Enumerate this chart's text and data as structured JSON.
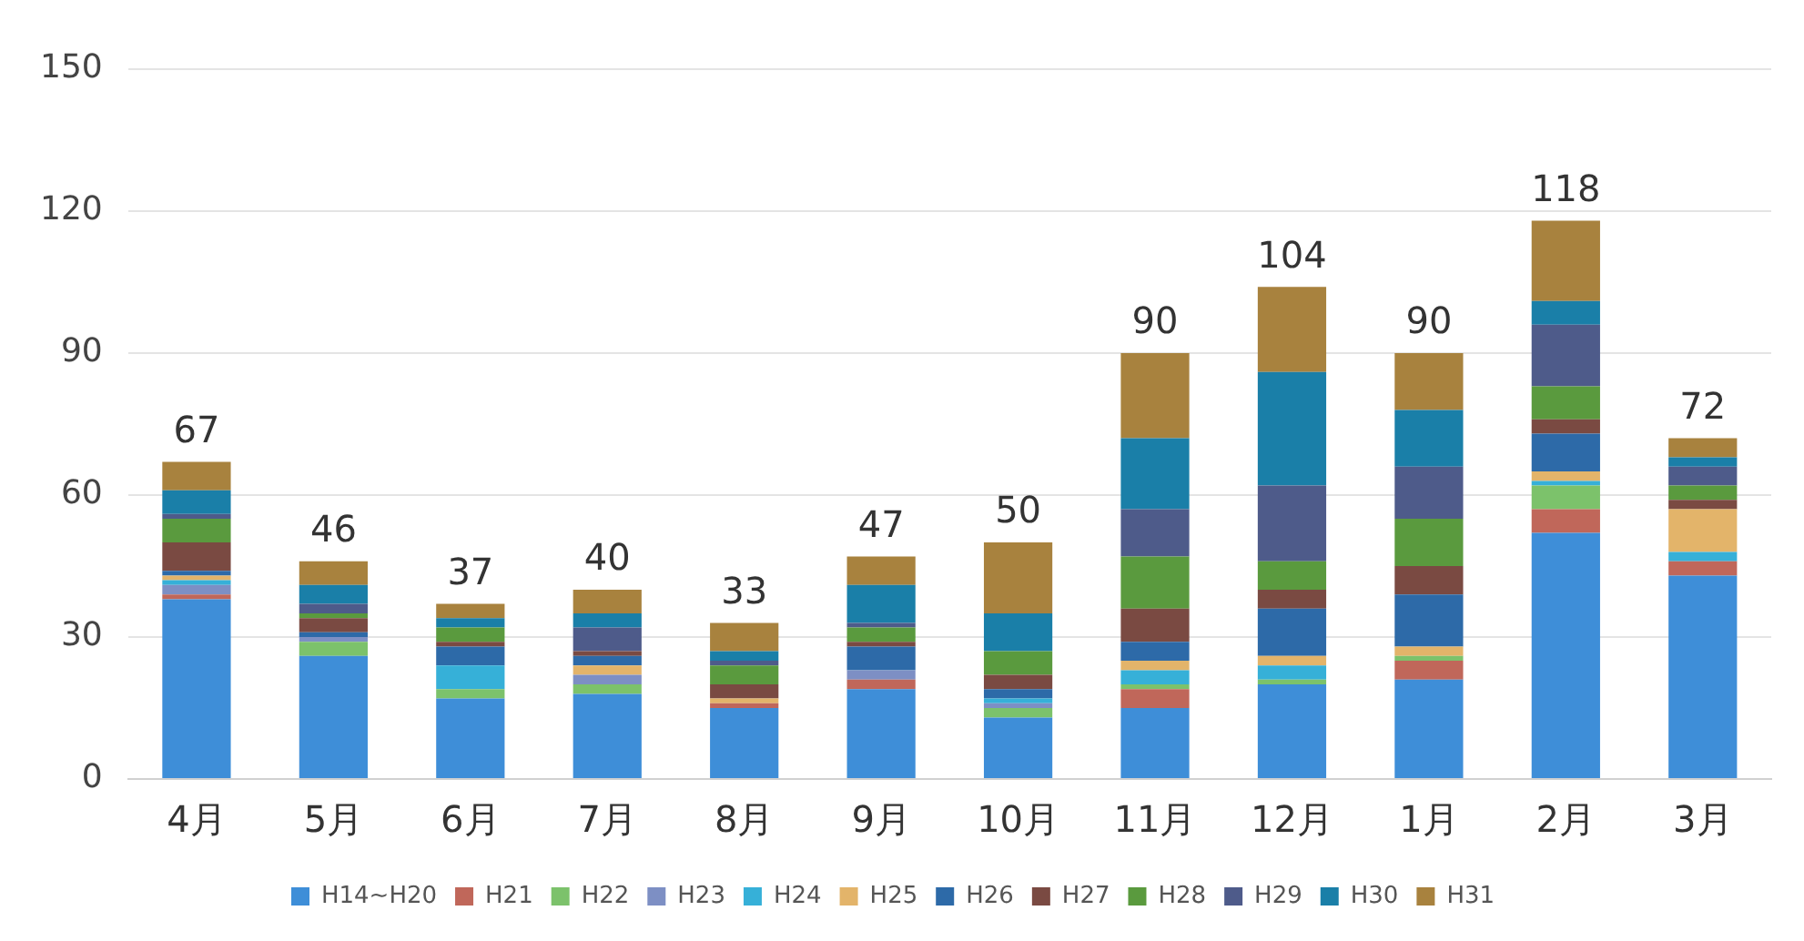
{
  "chart_data": {
    "type": "bar",
    "stacked": true,
    "categories": [
      "4月",
      "5月",
      "6月",
      "7月",
      "8月",
      "9月",
      "10月",
      "11月",
      "12月",
      "1月",
      "2月",
      "3月"
    ],
    "series": [
      {
        "name": "H14~H20",
        "color": "#3e8ed8",
        "values": [
          38,
          26,
          17,
          18,
          15,
          19,
          13,
          15,
          20,
          21,
          52,
          43
        ]
      },
      {
        "name": "H21",
        "color": "#c0675a",
        "values": [
          1,
          0,
          0,
          0,
          1,
          2,
          0,
          4,
          0,
          4,
          5,
          3
        ]
      },
      {
        "name": "H22",
        "color": "#7cc26b",
        "values": [
          0,
          3,
          2,
          2,
          0,
          0,
          2,
          1,
          1,
          1,
          5,
          0
        ]
      },
      {
        "name": "H23",
        "color": "#7d8fc4",
        "values": [
          2,
          1,
          0,
          2,
          0,
          2,
          1,
          0,
          0,
          0,
          0,
          0
        ]
      },
      {
        "name": "H24",
        "color": "#36b0d8",
        "values": [
          1,
          0,
          5,
          0,
          0,
          0,
          1,
          3,
          3,
          0,
          1,
          2
        ]
      },
      {
        "name": "H25",
        "color": "#e3b46a",
        "values": [
          1,
          0,
          0,
          2,
          1,
          0,
          0,
          2,
          2,
          2,
          2,
          9
        ]
      },
      {
        "name": "H26",
        "color": "#2d6aa8",
        "values": [
          1,
          1,
          4,
          2,
          0,
          5,
          2,
          4,
          10,
          11,
          8,
          0
        ]
      },
      {
        "name": "H27",
        "color": "#7a4a42",
        "values": [
          6,
          3,
          1,
          1,
          3,
          1,
          3,
          7,
          4,
          6,
          3,
          2
        ]
      },
      {
        "name": "H28",
        "color": "#5a9a3e",
        "values": [
          5,
          1,
          3,
          0,
          4,
          3,
          5,
          11,
          6,
          10,
          7,
          3
        ]
      },
      {
        "name": "H29",
        "color": "#4e5b8a",
        "values": [
          1,
          2,
          0,
          5,
          1,
          1,
          0,
          10,
          16,
          11,
          13,
          4
        ]
      },
      {
        "name": "H30",
        "color": "#1a7fa8",
        "values": [
          5,
          4,
          2,
          3,
          2,
          8,
          8,
          15,
          24,
          12,
          5,
          2
        ]
      },
      {
        "name": "H31",
        "color": "#a8823e",
        "values": [
          6,
          5,
          3,
          5,
          6,
          6,
          15,
          18,
          18,
          12,
          17,
          4
        ]
      }
    ],
    "totals": [
      "67",
      "46",
      "37",
      "40",
      "33",
      "47",
      "50",
      "90",
      "104",
      "90",
      "118",
      "72"
    ],
    "ylim": [
      0,
      150
    ],
    "yticks": [
      0,
      30,
      60,
      90,
      120,
      150
    ],
    "grid": "y",
    "legend": "bottom"
  }
}
